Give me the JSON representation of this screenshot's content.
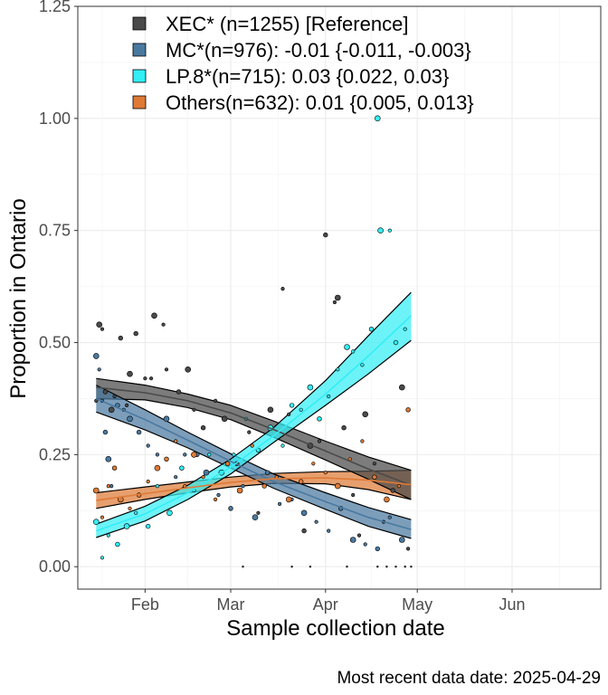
{
  "chart_data": {
    "type": "scatter",
    "xlabel": "Sample collection date",
    "ylabel": "Proportion in Ontario",
    "caption": "Most recent data date: 2025-04-29",
    "xlim": [
      "2025-01-10",
      "2025-06-30"
    ],
    "ylim": [
      -0.05,
      1.25
    ],
    "x_ticks": [
      {
        "date": "2025-02-01",
        "label": "Feb"
      },
      {
        "date": "2025-03-01",
        "label": "Mar"
      },
      {
        "date": "2025-04-01",
        "label": "Apr"
      },
      {
        "date": "2025-05-01",
        "label": "May"
      },
      {
        "date": "2025-06-01",
        "label": "Jun"
      }
    ],
    "y_ticks": [
      0,
      0.25,
      0.5,
      0.75,
      1.0,
      1.25
    ],
    "y_tick_labels": [
      "0.00",
      "0.25",
      "0.50",
      "0.75",
      "1.00",
      "1.25"
    ],
    "grid": true,
    "legend_position": "top-left",
    "legend_labels": [
      "XEC* (n=1255)  [Reference]",
      "MC*(n=976): -0.01 {-0.011, -0.003}",
      "LP.8*(n=715): 0.03 {0.022, 0.03}",
      "Others(n=632): 0.01 {0.005, 0.013}"
    ],
    "series": [
      {
        "name": "XEC* (n=1255)  [Reference]",
        "color": "#4a4a4a",
        "fit_x": [
          "2025-01-16",
          "2025-02-01",
          "2025-02-15",
          "2025-03-01",
          "2025-03-15",
          "2025-04-01",
          "2025-04-15",
          "2025-04-29"
        ],
        "fit_y": [
          0.4,
          0.388,
          0.37,
          0.343,
          0.306,
          0.258,
          0.218,
          0.182
        ],
        "fit_lo": [
          0.375,
          0.372,
          0.355,
          0.328,
          0.289,
          0.238,
          0.195,
          0.15
        ],
        "fit_hi": [
          0.42,
          0.405,
          0.385,
          0.36,
          0.325,
          0.28,
          0.245,
          0.215
        ],
        "points": [
          [
            "2025-01-17",
            0.54
          ],
          [
            "2025-01-18",
            0.53
          ],
          [
            "2025-01-16",
            0.37
          ],
          [
            "2025-01-19",
            0.39
          ],
          [
            "2025-01-21",
            0.35
          ],
          [
            "2025-01-22",
            0.38
          ],
          [
            "2025-01-24",
            0.51
          ],
          [
            "2025-01-26",
            0.36
          ],
          [
            "2025-01-27",
            0.43
          ],
          [
            "2025-01-29",
            0.52
          ],
          [
            "2025-02-01",
            0.42
          ],
          [
            "2025-02-03",
            0.42
          ],
          [
            "2025-02-04",
            0.56
          ],
          [
            "2025-02-07",
            0.54
          ],
          [
            "2025-02-08",
            0.44
          ],
          [
            "2025-02-12",
            0.39
          ],
          [
            "2025-02-15",
            0.44
          ],
          [
            "2025-02-17",
            0.35
          ],
          [
            "2025-02-20",
            0.31
          ],
          [
            "2025-02-24",
            0.37
          ],
          [
            "2025-02-27",
            0.33
          ],
          [
            "2025-03-03",
            0.23
          ],
          [
            "2025-03-07",
            0.3
          ],
          [
            "2025-03-10",
            0.12
          ],
          [
            "2025-03-14",
            0.35
          ],
          [
            "2025-03-18",
            0.62
          ],
          [
            "2025-03-20",
            0.34
          ],
          [
            "2025-03-25",
            0.08
          ],
          [
            "2025-03-27",
            0.27
          ],
          [
            "2025-03-30",
            0.28
          ],
          [
            "2025-04-01",
            0.74
          ],
          [
            "2025-04-04",
            0.59
          ],
          [
            "2025-04-05",
            0.6
          ],
          [
            "2025-04-07",
            0.31
          ],
          [
            "2025-04-10",
            0.16
          ],
          [
            "2025-04-12",
            0.07
          ],
          [
            "2025-04-14",
            0.34
          ],
          [
            "2025-04-17",
            0.23
          ],
          [
            "2025-04-20",
            0.1
          ],
          [
            "2025-04-23",
            0.17
          ],
          [
            "2025-04-26",
            0.4
          ],
          [
            "2025-04-28",
            0.04
          ],
          [
            "2025-03-05",
            0.0
          ],
          [
            "2025-03-21",
            0.0
          ],
          [
            "2025-03-27",
            0.0
          ],
          [
            "2025-04-08",
            0.0
          ],
          [
            "2025-04-18",
            0.0
          ],
          [
            "2025-04-21",
            0.0
          ],
          [
            "2025-04-24",
            0.0
          ],
          [
            "2025-04-27",
            0.0
          ],
          [
            "2025-04-29",
            0.0
          ]
        ]
      },
      {
        "name": "MC*(n=976): -0.01 {-0.011, -0.003}",
        "color": "#4a79a0",
        "fit_x": [
          "2025-01-16",
          "2025-02-01",
          "2025-02-15",
          "2025-03-01",
          "2025-03-15",
          "2025-04-01",
          "2025-04-15",
          "2025-04-29"
        ],
        "fit_y": [
          0.375,
          0.328,
          0.282,
          0.235,
          0.19,
          0.145,
          0.11,
          0.083
        ],
        "fit_lo": [
          0.345,
          0.305,
          0.265,
          0.22,
          0.175,
          0.128,
          0.09,
          0.063
        ],
        "fit_hi": [
          0.405,
          0.35,
          0.3,
          0.252,
          0.207,
          0.165,
          0.132,
          0.105
        ],
        "points": [
          [
            "2025-01-16",
            0.47
          ],
          [
            "2025-01-17",
            0.44
          ],
          [
            "2025-01-18",
            0.37
          ],
          [
            "2025-01-19",
            0.3
          ],
          [
            "2025-01-20",
            0.24
          ],
          [
            "2025-01-21",
            0.18
          ],
          [
            "2025-01-23",
            0.36
          ],
          [
            "2025-01-25",
            0.35
          ],
          [
            "2025-01-27",
            0.33
          ],
          [
            "2025-01-30",
            0.3
          ],
          [
            "2025-02-02",
            0.27
          ],
          [
            "2025-02-05",
            0.25
          ],
          [
            "2025-02-08",
            0.33
          ],
          [
            "2025-02-11",
            0.2
          ],
          [
            "2025-02-14",
            0.25
          ],
          [
            "2025-02-18",
            0.25
          ],
          [
            "2025-02-21",
            0.21
          ],
          [
            "2025-02-25",
            0.16
          ],
          [
            "2025-03-01",
            0.13
          ],
          [
            "2025-03-05",
            0.18
          ],
          [
            "2025-03-09",
            0.11
          ],
          [
            "2025-03-13",
            0.21
          ],
          [
            "2025-03-17",
            0.14
          ],
          [
            "2025-03-21",
            0.15
          ],
          [
            "2025-03-25",
            0.12
          ],
          [
            "2025-03-29",
            0.1
          ],
          [
            "2025-04-02",
            0.08
          ],
          [
            "2025-04-06",
            0.13
          ],
          [
            "2025-04-10",
            0.06
          ],
          [
            "2025-04-14",
            0.05
          ],
          [
            "2025-04-18",
            0.04
          ],
          [
            "2025-04-22",
            0.11
          ],
          [
            "2025-04-26",
            0.06
          ]
        ]
      },
      {
        "name": "LP.8*(n=715): 0.03 {0.022, 0.03}",
        "color": "#33eef5",
        "fit_x": [
          "2025-01-16",
          "2025-02-01",
          "2025-02-15",
          "2025-03-01",
          "2025-03-15",
          "2025-04-01",
          "2025-04-15",
          "2025-04-29"
        ],
        "fit_y": [
          0.08,
          0.118,
          0.165,
          0.222,
          0.292,
          0.385,
          0.47,
          0.56
        ],
        "fit_lo": [
          0.065,
          0.102,
          0.15,
          0.207,
          0.277,
          0.36,
          0.43,
          0.505
        ],
        "fit_hi": [
          0.095,
          0.135,
          0.182,
          0.24,
          0.31,
          0.415,
          0.515,
          0.612
        ],
        "points": [
          [
            "2025-01-16",
            0.1
          ],
          [
            "2025-01-18",
            0.02
          ],
          [
            "2025-01-20",
            0.07
          ],
          [
            "2025-01-23",
            0.05
          ],
          [
            "2025-01-26",
            0.09
          ],
          [
            "2025-01-29",
            0.12
          ],
          [
            "2025-02-02",
            0.09
          ],
          [
            "2025-02-05",
            0.18
          ],
          [
            "2025-02-09",
            0.12
          ],
          [
            "2025-02-13",
            0.22
          ],
          [
            "2025-02-17",
            0.17
          ],
          [
            "2025-02-22",
            0.25
          ],
          [
            "2025-02-26",
            0.21
          ],
          [
            "2025-03-02",
            0.25
          ],
          [
            "2025-03-06",
            0.33
          ],
          [
            "2025-03-10",
            0.26
          ],
          [
            "2025-03-14",
            0.31
          ],
          [
            "2025-03-18",
            0.27
          ],
          [
            "2025-03-21",
            0.36
          ],
          [
            "2025-03-24",
            0.35
          ],
          [
            "2025-03-27",
            0.4
          ],
          [
            "2025-03-30",
            0.33
          ],
          [
            "2025-04-02",
            0.38
          ],
          [
            "2025-04-05",
            0.44
          ],
          [
            "2025-04-08",
            0.49
          ],
          [
            "2025-04-10",
            0.48
          ],
          [
            "2025-04-13",
            0.45
          ],
          [
            "2025-04-16",
            0.53
          ],
          [
            "2025-04-19",
            0.75
          ],
          [
            "2025-04-22",
            0.75
          ],
          [
            "2025-04-24",
            0.5
          ],
          [
            "2025-04-27",
            0.53
          ],
          [
            "2025-04-18",
            1.0
          ]
        ]
      },
      {
        "name": "Others(n=632): 0.01 {0.005, 0.013}",
        "color": "#de7a36",
        "fit_x": [
          "2025-01-16",
          "2025-02-01",
          "2025-02-15",
          "2025-03-01",
          "2025-03-15",
          "2025-04-01",
          "2025-04-15",
          "2025-04-29"
        ],
        "fit_y": [
          0.148,
          0.163,
          0.176,
          0.188,
          0.196,
          0.198,
          0.193,
          0.183
        ],
        "fit_lo": [
          0.13,
          0.15,
          0.165,
          0.178,
          0.186,
          0.185,
          0.172,
          0.15
        ],
        "fit_hi": [
          0.165,
          0.178,
          0.189,
          0.2,
          0.208,
          0.212,
          0.213,
          0.215
        ],
        "points": [
          [
            "2025-01-16",
            0.17
          ],
          [
            "2025-01-18",
            0.11
          ],
          [
            "2025-01-20",
            0.18
          ],
          [
            "2025-01-22",
            0.22
          ],
          [
            "2025-01-24",
            0.15
          ],
          [
            "2025-01-27",
            0.13
          ],
          [
            "2025-01-30",
            0.16
          ],
          [
            "2025-02-02",
            0.19
          ],
          [
            "2025-02-05",
            0.22
          ],
          [
            "2025-02-08",
            0.24
          ],
          [
            "2025-02-11",
            0.28
          ],
          [
            "2025-02-14",
            0.18
          ],
          [
            "2025-02-17",
            0.25
          ],
          [
            "2025-02-20",
            0.2
          ],
          [
            "2025-02-24",
            0.15
          ],
          [
            "2025-02-28",
            0.23
          ],
          [
            "2025-03-04",
            0.17
          ],
          [
            "2025-03-08",
            0.27
          ],
          [
            "2025-03-12",
            0.18
          ],
          [
            "2025-03-16",
            0.2
          ],
          [
            "2025-03-20",
            0.15
          ],
          [
            "2025-03-24",
            0.19
          ],
          [
            "2025-03-28",
            0.23
          ],
          [
            "2025-04-01",
            0.21
          ],
          [
            "2025-04-05",
            0.18
          ],
          [
            "2025-04-09",
            0.24
          ],
          [
            "2025-04-13",
            0.28
          ],
          [
            "2025-04-17",
            0.2
          ],
          [
            "2025-04-21",
            0.15
          ],
          [
            "2025-04-25",
            0.18
          ],
          [
            "2025-04-28",
            0.35
          ]
        ]
      }
    ]
  }
}
